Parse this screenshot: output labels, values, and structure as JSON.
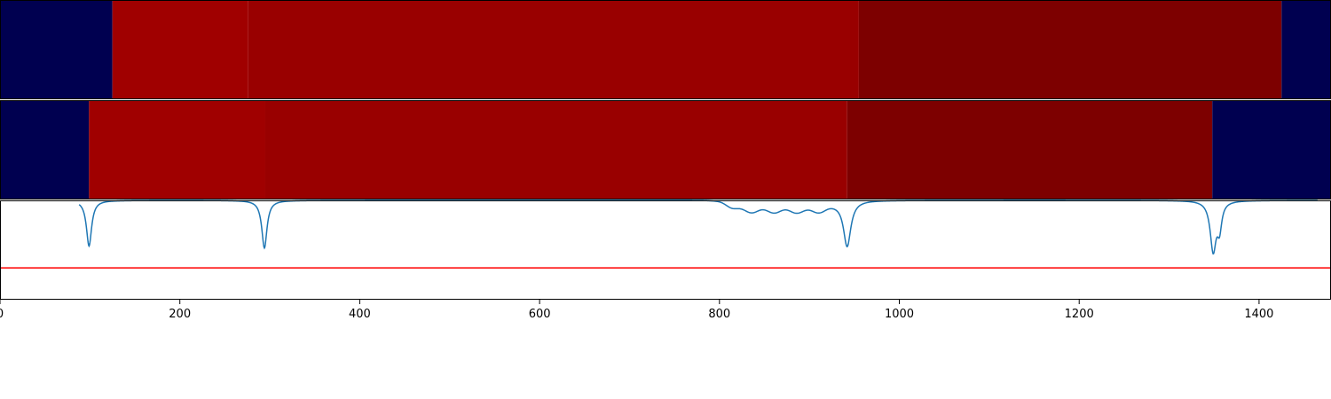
{
  "chart_data": {
    "type": "heatmap",
    "xlim": [
      0,
      1480
    ],
    "x_ticks": [
      0,
      200,
      400,
      600,
      800,
      1000,
      1200,
      1400
    ],
    "x_tick_labels": [
      "0",
      "200",
      "400",
      "600",
      "800",
      "1000",
      "1200",
      "1400"
    ],
    "grid": false,
    "legend": "none",
    "colors": {
      "background": "#ffffff",
      "empty": "#000050",
      "signal_line": "#1f77b4",
      "threshold_line": "#ff0000",
      "axis": "#000000"
    },
    "rows": [
      {
        "segments": [
          {
            "start": 0,
            "end": 125,
            "color": "#000050"
          },
          {
            "start": 125,
            "end": 276,
            "color": "#a00000"
          },
          {
            "start": 276,
            "end": 955,
            "color": "#990000"
          },
          {
            "start": 955,
            "end": 1425,
            "color": "#7d0000"
          },
          {
            "start": 1425,
            "end": 1480,
            "color": "#000050"
          }
        ]
      },
      {
        "segments": [
          {
            "start": 0,
            "end": 99,
            "color": "#000050"
          },
          {
            "start": 99,
            "end": 295,
            "color": "#a00000"
          },
          {
            "start": 295,
            "end": 942,
            "color": "#990000"
          },
          {
            "start": 942,
            "end": 1348,
            "color": "#7d0000"
          },
          {
            "start": 1348,
            "end": 1480,
            "color": "#000050"
          }
        ]
      }
    ],
    "signal": {
      "ylim": [
        0,
        1
      ],
      "threshold": 0.32,
      "baseline": 1.0,
      "dips": [
        {
          "center": 99,
          "depth": 0.46,
          "width": 3.5
        },
        {
          "center": 294,
          "depth": 0.48,
          "width": 3.5
        },
        {
          "center": 942,
          "depth": 0.46,
          "width": 5
        },
        {
          "center": 1349,
          "depth": 0.5,
          "width": 4
        },
        {
          "center": 1356,
          "depth": 0.25,
          "width": 3
        }
      ],
      "plateau": {
        "start": 810,
        "end": 925,
        "depth": 0.11
      }
    }
  }
}
